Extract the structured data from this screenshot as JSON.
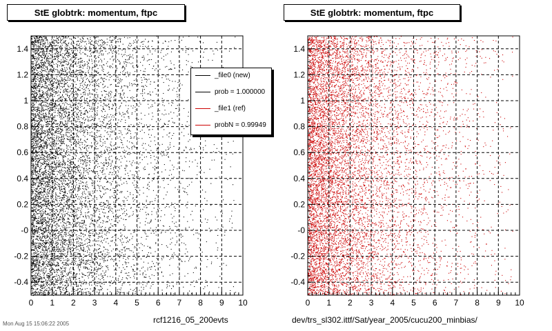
{
  "panels": [
    {
      "title": "StE globtrk: momentum, ftpc",
      "caption": "rcf1216_05_200evts",
      "color": "#000000"
    },
    {
      "title": "StE globtrk: momentum, ftpc",
      "caption": "dev/trs_sl302.ittf/Sat/year_2005/cucu200_minbias/",
      "color": "#cc0000"
    }
  ],
  "stamp": "Mon Aug 15 15:06:22 2005",
  "legend": {
    "entries": [
      {
        "label": "_file0 (new)",
        "color": "#000000"
      },
      {
        "label": "prob = 1.000000",
        "color": "#000000"
      },
      {
        "label": "_file1 (ref)",
        "color": "#cc0000"
      },
      {
        "label": "probN = 0.99949",
        "color": "#cc0000"
      }
    ]
  },
  "chart_data": [
    {
      "type": "scatter",
      "title": "StE globtrk: momentum, ftpc",
      "xlim": [
        0,
        10
      ],
      "ylim": [
        -0.5,
        1.5
      ],
      "x_ticks": [
        "0",
        "1",
        "2",
        "3",
        "4",
        "5",
        "6",
        "7",
        "8",
        "9",
        "10"
      ],
      "y_ticks": [
        "-0.4",
        "-0.2",
        "-0",
        "0.2",
        "0.4",
        "0.6",
        "0.8",
        "1",
        "1.2",
        "1.4"
      ],
      "grid": true,
      "series": [
        {
          "name": "_file0 (new)",
          "color": "#000000"
        }
      ],
      "legend_position": "top-right"
    },
    {
      "type": "scatter",
      "title": "StE globtrk: momentum, ftpc",
      "xlim": [
        0,
        10
      ],
      "ylim": [
        -0.5,
        1.5
      ],
      "x_ticks": [
        "0",
        "1",
        "2",
        "3",
        "4",
        "5",
        "6",
        "7",
        "8",
        "9",
        "10"
      ],
      "y_ticks": [
        "-0.4",
        "-0.2",
        "-0",
        "0.2",
        "0.4",
        "0.6",
        "0.8",
        "1",
        "1.2",
        "1.4"
      ],
      "grid": true,
      "series": [
        {
          "name": "_file1 (ref)",
          "color": "#cc0000"
        }
      ]
    }
  ]
}
